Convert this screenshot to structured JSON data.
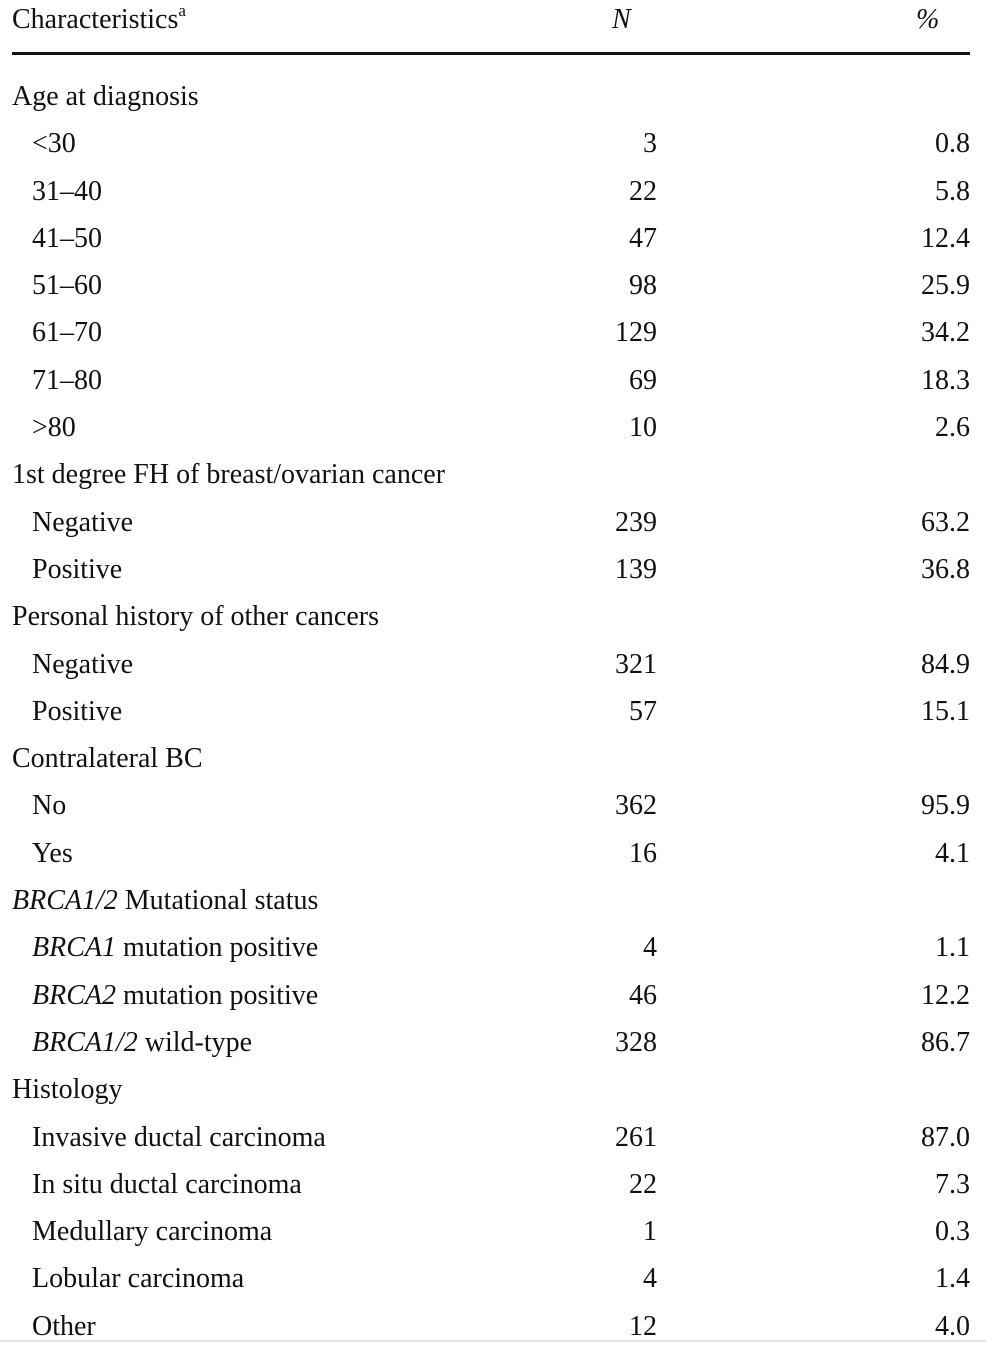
{
  "header": {
    "characteristics": "Characteristics",
    "footnote_mark": "a",
    "n": "N",
    "pct": "%"
  },
  "rows": [
    {
      "type": "group",
      "label": "Age at diagnosis"
    },
    {
      "type": "item",
      "label": "<30",
      "n": "3",
      "pct": "0.8"
    },
    {
      "type": "item",
      "label": "31–40",
      "n": "22",
      "pct": "5.8"
    },
    {
      "type": "item",
      "label": "41–50",
      "n": "47",
      "pct": "12.4"
    },
    {
      "type": "item",
      "label": "51–60",
      "n": "98",
      "pct": "25.9"
    },
    {
      "type": "item",
      "label": "61–70",
      "n": "129",
      "pct": "34.2"
    },
    {
      "type": "item",
      "label": "71–80",
      "n": "69",
      "pct": "18.3"
    },
    {
      "type": "item",
      "label": ">80",
      "n": "10",
      "pct": "2.6"
    },
    {
      "type": "group",
      "label": "1st degree FH of breast/ovarian cancer"
    },
    {
      "type": "item",
      "label": "Negative",
      "n": "239",
      "pct": "63.2"
    },
    {
      "type": "item",
      "label": "Positive",
      "n": "139",
      "pct": "36.8"
    },
    {
      "type": "group",
      "label": "Personal history of other cancers"
    },
    {
      "type": "item",
      "label": "Negative",
      "n": "321",
      "pct": "84.9"
    },
    {
      "type": "item",
      "label": "Positive",
      "n": "57",
      "pct": "15.1"
    },
    {
      "type": "group",
      "label": "Contralateral BC"
    },
    {
      "type": "item",
      "label": "No",
      "n": "362",
      "pct": "95.9"
    },
    {
      "type": "item",
      "label": "Yes",
      "n": "16",
      "pct": "4.1"
    },
    {
      "type": "group",
      "label_italic": "BRCA1/2",
      "label_rest": " Mutational status"
    },
    {
      "type": "item",
      "label_italic": "BRCA1",
      "label_rest": " mutation positive",
      "n": "4",
      "pct": "1.1"
    },
    {
      "type": "item",
      "label_italic": "BRCA2",
      "label_rest": " mutation positive",
      "n": "46",
      "pct": "12.2"
    },
    {
      "type": "item",
      "label_italic": "BRCA1/2",
      "label_rest": " wild-type",
      "n": "328",
      "pct": "86.7"
    },
    {
      "type": "group",
      "label": "Histology"
    },
    {
      "type": "item",
      "label": "Invasive ductal carcinoma",
      "n": "261",
      "pct": "87.0"
    },
    {
      "type": "item",
      "label": "In situ ductal carcinoma",
      "n": "22",
      "pct": "7.3"
    },
    {
      "type": "item",
      "label": "Medullary carcinoma",
      "n": "1",
      "pct": "0.3"
    },
    {
      "type": "item",
      "label": "Lobular carcinoma",
      "n": "4",
      "pct": "1.4"
    },
    {
      "type": "item",
      "label": "Other",
      "n": "12",
      "pct": "4.0"
    }
  ]
}
